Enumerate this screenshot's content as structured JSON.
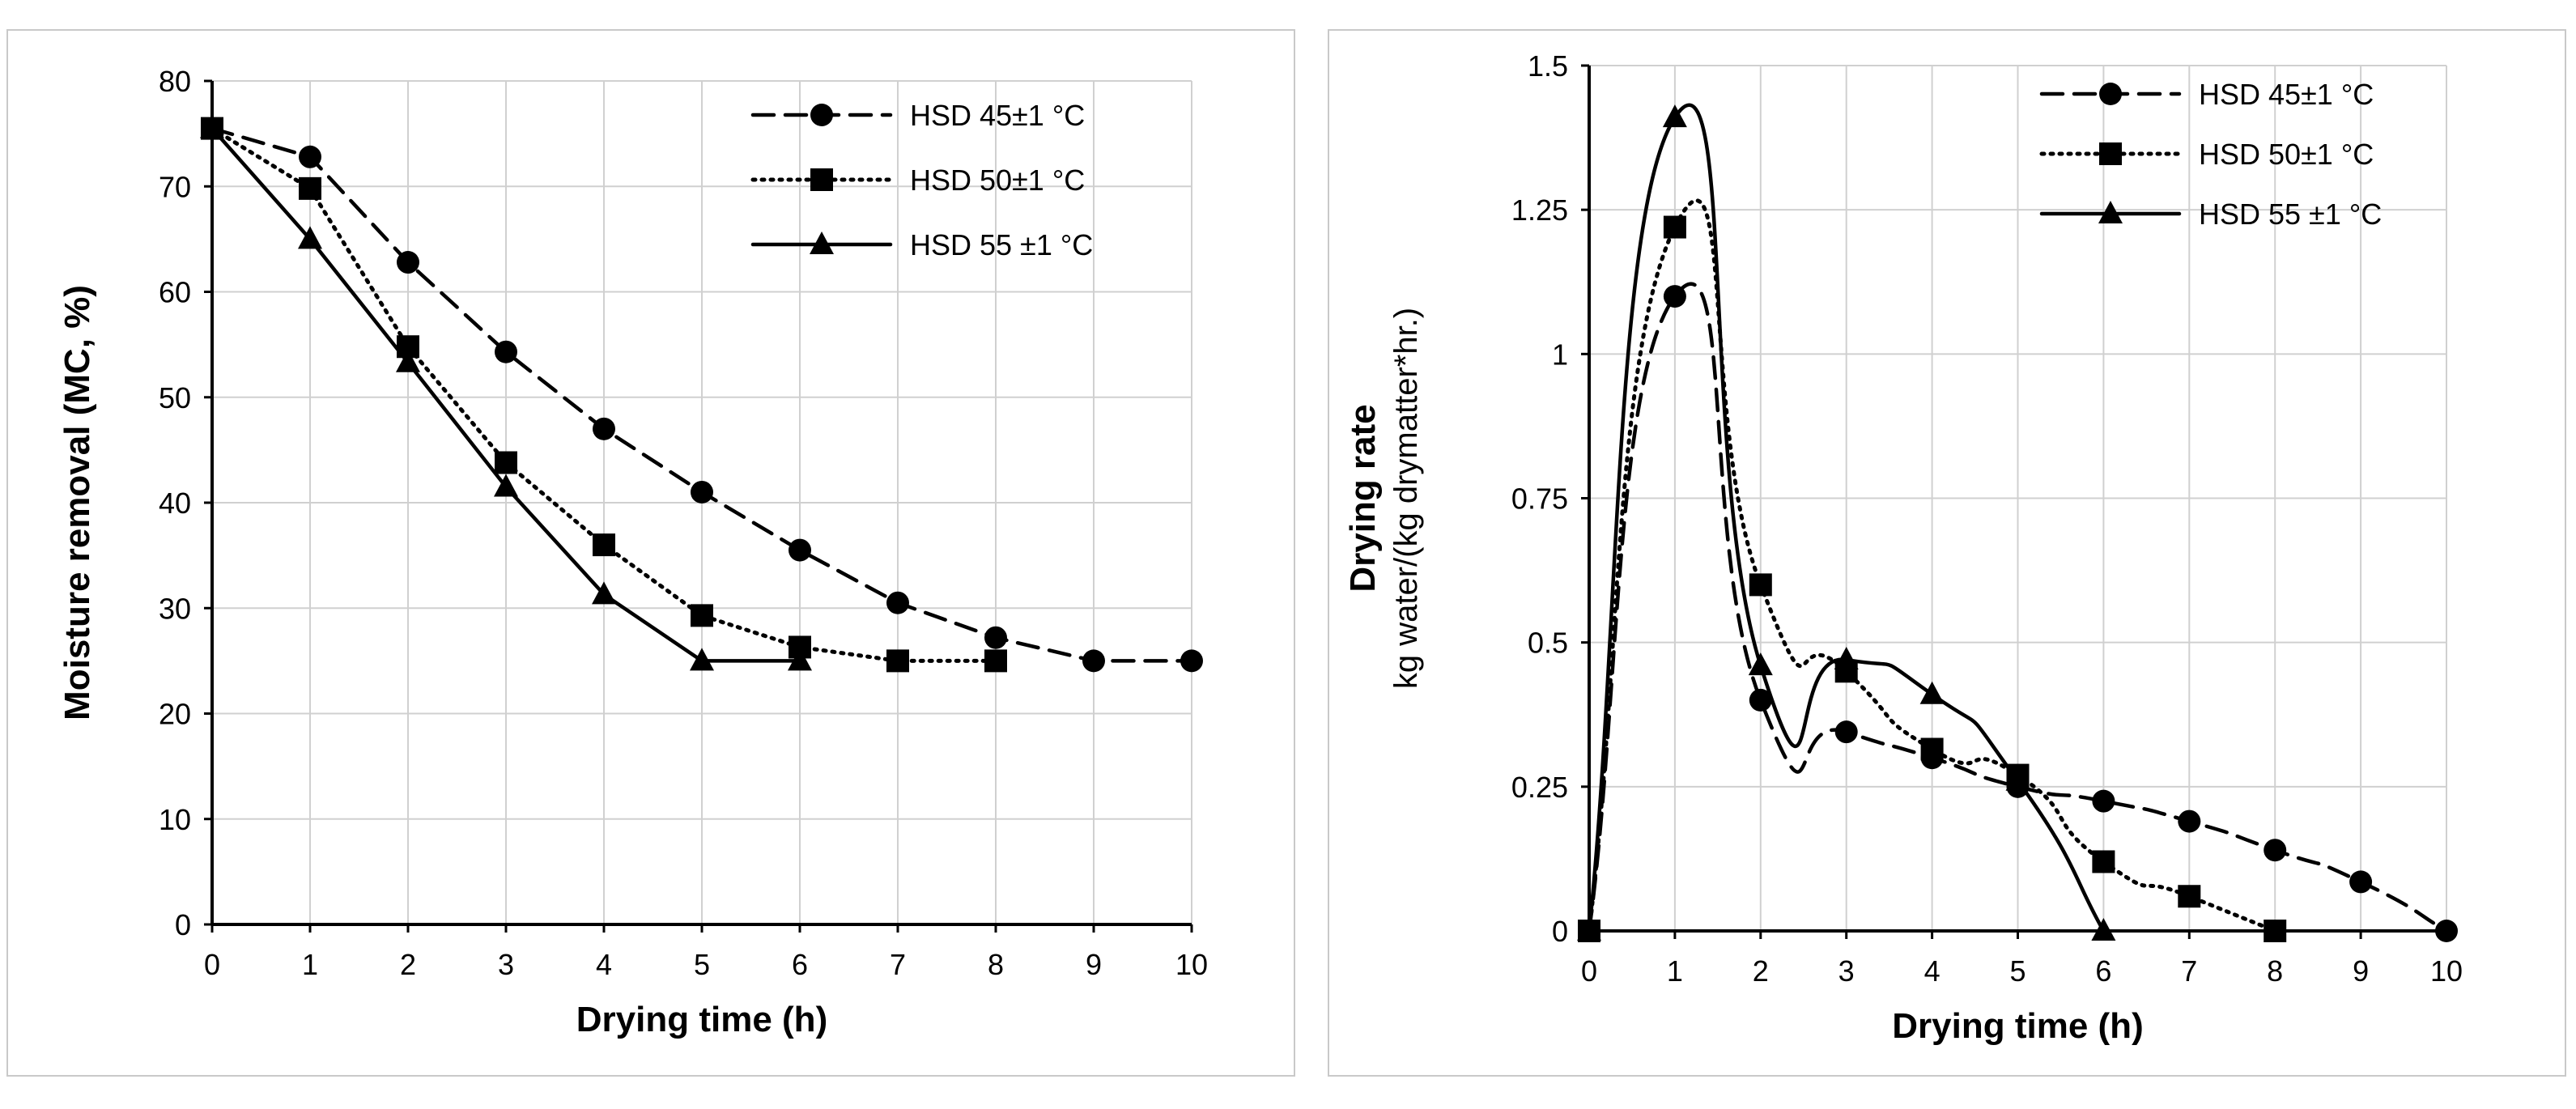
{
  "chart_data": [
    {
      "type": "line",
      "title": "",
      "xlabel": "Drying time (h)",
      "ylabel": "Moisture removal (MC, %)",
      "xlim": [
        0,
        10
      ],
      "ylim": [
        0,
        80
      ],
      "xticks": [
        "0",
        "1",
        "2",
        "3",
        "4",
        "5",
        "6",
        "7",
        "8",
        "9",
        "10"
      ],
      "yticks": [
        "0",
        "10",
        "20",
        "30",
        "40",
        "50",
        "60",
        "70",
        "80"
      ],
      "grid": true,
      "legend_position": "top-right",
      "series": [
        {
          "name": "HSD 45±1 °C",
          "line_style": "dashed",
          "marker": "circle",
          "x": [
            0,
            1,
            2,
            3,
            4,
            5,
            6,
            7,
            8,
            9,
            10
          ],
          "y": [
            75.5,
            72.8,
            62.8,
            54.3,
            47.0,
            41.0,
            35.5,
            30.5,
            27.2,
            25.0,
            25.0
          ]
        },
        {
          "name": "HSD 50±1 °C",
          "line_style": "dotted",
          "marker": "square",
          "x": [
            0,
            1,
            2,
            3,
            4,
            5,
            6,
            7,
            8
          ],
          "y": [
            75.5,
            69.8,
            54.8,
            43.8,
            36.0,
            29.3,
            26.3,
            25.0,
            25.0
          ]
        },
        {
          "name": "HSD 55 ±1 °C",
          "line_style": "solid",
          "marker": "triangle",
          "x": [
            0,
            1,
            2,
            3,
            4,
            5,
            6
          ],
          "y": [
            75.5,
            65.0,
            53.3,
            41.5,
            31.3,
            25.0,
            25.0
          ]
        }
      ]
    },
    {
      "type": "line",
      "title": "",
      "xlabel": "Drying time (h)",
      "ylabel": "Drying rate",
      "ylabel2": "kg water/(kg drymatter*hr.)",
      "xlim": [
        0,
        10
      ],
      "ylim": [
        0,
        1.5
      ],
      "xticks": [
        "0",
        "1",
        "2",
        "3",
        "4",
        "5",
        "6",
        "7",
        "8",
        "9",
        "10"
      ],
      "yticks": [
        "0",
        "0.25",
        "0.5",
        "0.75",
        "1",
        "1.25",
        "1.5"
      ],
      "grid": true,
      "legend_position": "top-right",
      "series": [
        {
          "name": "HSD 45±1 °C",
          "line_style": "dashed",
          "marker": "circle",
          "x": [
            0,
            1,
            2,
            3,
            4,
            5,
            6,
            7,
            8,
            9,
            10
          ],
          "y": [
            0,
            1.1,
            0.4,
            0.345,
            0.3,
            0.25,
            0.225,
            0.19,
            0.14,
            0.085,
            0
          ]
        },
        {
          "name": "HSD 50±1 °C",
          "line_style": "dotted",
          "marker": "square",
          "x": [
            0,
            1,
            2,
            3,
            4,
            5,
            6,
            7,
            8
          ],
          "y": [
            0,
            1.22,
            0.6,
            0.45,
            0.315,
            0.27,
            0.12,
            0.06,
            0
          ]
        },
        {
          "name": "HSD 55 ±1 °C",
          "line_style": "solid",
          "marker": "triangle",
          "x": [
            0,
            1,
            2,
            3,
            4,
            5,
            6
          ],
          "y": [
            0,
            1.41,
            0.46,
            0.47,
            0.41,
            0.26,
            0
          ]
        }
      ]
    }
  ]
}
